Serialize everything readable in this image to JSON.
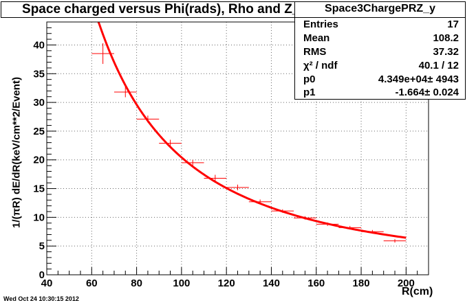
{
  "title": "Space charged versus Phi(rads), Rho and Z_y",
  "timestamp": "Wed Oct 24 10:30:15 2012",
  "stats": {
    "name": "Space3ChargePRZ_y",
    "rows": [
      {
        "label": "Entries",
        "value": "17"
      },
      {
        "label": "Mean",
        "value": "108.2"
      },
      {
        "label": "RMS",
        "value": "37.32"
      },
      {
        "label": "χ² / ndf",
        "value": "40.1 / 12"
      },
      {
        "label": "p0",
        "value": "4.349e+04± 4943"
      },
      {
        "label": "p1",
        "value": "-1.664± 0.024"
      }
    ]
  },
  "colors": {
    "data": "#ff0000",
    "fit": "#ff0000",
    "axis": "#000000",
    "grid": "#c0c0c0"
  },
  "chart_data": {
    "type": "scatter",
    "title": "Space charged versus Phi(rads), Rho and Z_y",
    "xlabel": "R(cm)",
    "ylabel": "1/(πR) dE/dR(keV/cm**2/Event)",
    "xlim": [
      40,
      210
    ],
    "ylim": [
      0,
      44
    ],
    "xticks": [
      40,
      60,
      80,
      100,
      120,
      140,
      160,
      180,
      200
    ],
    "yticks": [
      0,
      5,
      10,
      15,
      20,
      25,
      30,
      35,
      40
    ],
    "grid": true,
    "series": [
      {
        "name": "Space3ChargePRZ_y",
        "points": [
          {
            "x": 65,
            "y": 38.5,
            "xerr": 5,
            "yerr": 1.8
          },
          {
            "x": 75,
            "y": 31.8,
            "xerr": 5,
            "yerr": 0.9
          },
          {
            "x": 85,
            "y": 27.1,
            "xerr": 5,
            "yerr": 0.6
          },
          {
            "x": 95,
            "y": 22.9,
            "xerr": 5,
            "yerr": 0.6
          },
          {
            "x": 105,
            "y": 19.5,
            "xerr": 5,
            "yerr": 0.5
          },
          {
            "x": 115,
            "y": 16.8,
            "xerr": 5,
            "yerr": 0.6
          },
          {
            "x": 125,
            "y": 15.2,
            "xerr": 5,
            "yerr": 0.5
          },
          {
            "x": 135,
            "y": 12.7,
            "xerr": 5,
            "yerr": 0.4
          },
          {
            "x": 145,
            "y": 11.1,
            "xerr": 5,
            "yerr": 0.3
          },
          {
            "x": 155,
            "y": 9.9,
            "xerr": 5,
            "yerr": 0.3
          },
          {
            "x": 165,
            "y": 8.8,
            "xerr": 5,
            "yerr": 0.3
          },
          {
            "x": 175,
            "y": 8.2,
            "xerr": 5,
            "yerr": 0.3
          },
          {
            "x": 185,
            "y": 7.5,
            "xerr": 5,
            "yerr": 0.3
          },
          {
            "x": 195,
            "y": 5.9,
            "xerr": 5,
            "yerr": 0.3
          }
        ]
      }
    ],
    "fit": {
      "p0": 43490,
      "p1": -1.664,
      "xmin": 63,
      "xmax": 200
    }
  }
}
